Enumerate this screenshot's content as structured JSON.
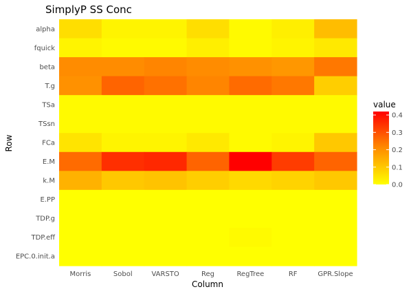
{
  "chart_data": {
    "type": "heatmap",
    "title": "SimplyP SS Conc",
    "xlabel": "Column",
    "ylabel": "Row",
    "columns": [
      "Morris",
      "Sobol",
      "VARSTO",
      "Reg",
      "RegTree",
      "RF",
      "GPR.Slope"
    ],
    "rows": [
      "alpha",
      "fquick",
      "beta",
      "T.g",
      "TSa",
      "TSsn",
      "FCa",
      "E.M",
      "k.M",
      "E.PP",
      "TDP.g",
      "TDP.eff",
      "EPC.0.init.a"
    ],
    "values": [
      [
        0.06,
        0.02,
        0.02,
        0.06,
        0.01,
        0.03,
        0.12
      ],
      [
        0.02,
        0.01,
        0.01,
        0.03,
        0.01,
        0.02,
        0.04
      ],
      [
        0.21,
        0.21,
        0.22,
        0.21,
        0.2,
        0.19,
        0.24
      ],
      [
        0.2,
        0.27,
        0.25,
        0.22,
        0.26,
        0.24,
        0.09
      ],
      [
        0.01,
        0.01,
        0.01,
        0.01,
        0.01,
        0.01,
        0.01
      ],
      [
        0.01,
        0.01,
        0.01,
        0.01,
        0.01,
        0.01,
        0.01
      ],
      [
        0.05,
        0.02,
        0.02,
        0.04,
        0.01,
        0.02,
        0.1
      ],
      [
        0.26,
        0.35,
        0.36,
        0.27,
        0.42,
        0.33,
        0.27
      ],
      [
        0.14,
        0.1,
        0.11,
        0.09,
        0.07,
        0.08,
        0.1
      ],
      [
        0.0,
        0.0,
        0.0,
        0.0,
        0.0,
        0.0,
        0.0
      ],
      [
        0.0,
        0.0,
        0.0,
        0.0,
        0.0,
        0.0,
        0.0
      ],
      [
        0.0,
        0.0,
        0.0,
        0.0,
        0.01,
        0.0,
        0.0
      ],
      [
        0.0,
        0.0,
        0.0,
        0.0,
        0.0,
        0.0,
        0.0
      ]
    ],
    "legend": {
      "title": "value",
      "min": 0.0,
      "max": 0.42,
      "ticks": [
        "0.0",
        "0.1",
        "0.2",
        "0.3",
        "0.4"
      ],
      "tick_values": [
        0,
        0.1,
        0.2,
        0.3,
        0.4
      ],
      "placement": "right"
    },
    "colors": {
      "low": "#ffff00",
      "mid": "#ff8c00",
      "high": "#ff0000"
    }
  }
}
